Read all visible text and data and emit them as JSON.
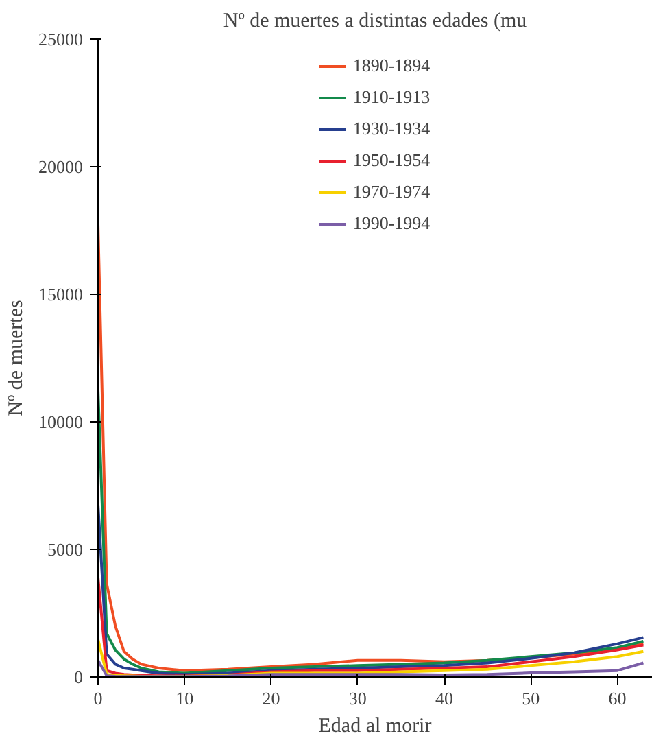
{
  "chart_data": {
    "type": "line",
    "title": "Nº de muertes a distintas edades (mu",
    "xlabel": "Edad al morir",
    "ylabel": "Nº de muertes",
    "x": [
      0,
      1,
      2,
      3,
      4,
      5,
      7,
      10,
      15,
      20,
      25,
      30,
      35,
      40,
      45,
      50,
      55,
      60,
      63
    ],
    "series": [
      {
        "name": "1890-1894",
        "color": "#f04e23",
        "values": [
          17750,
          3650,
          2000,
          1000,
          700,
          500,
          350,
          250,
          300,
          400,
          500,
          650,
          650,
          600,
          650,
          750,
          900,
          1100,
          1300
        ]
      },
      {
        "name": "1910-1913",
        "color": "#138a4b",
        "values": [
          11240,
          1700,
          1060,
          700,
          500,
          350,
          200,
          150,
          250,
          350,
          400,
          450,
          500,
          550,
          650,
          800,
          950,
          1150,
          1400
        ]
      },
      {
        "name": "1930-1934",
        "color": "#263f8f",
        "values": [
          6760,
          900,
          500,
          350,
          300,
          250,
          150,
          100,
          150,
          250,
          300,
          350,
          400,
          450,
          550,
          730,
          950,
          1300,
          1550
        ]
      },
      {
        "name": "1950-1954",
        "color": "#e8202f",
        "values": [
          3900,
          250,
          150,
          100,
          80,
          60,
          50,
          40,
          80,
          200,
          250,
          250,
          300,
          350,
          400,
          600,
          800,
          1060,
          1250
        ]
      },
      {
        "name": "1970-1974",
        "color": "#f7d000",
        "values": [
          1470,
          100,
          60,
          50,
          40,
          30,
          30,
          30,
          60,
          150,
          150,
          150,
          200,
          250,
          300,
          450,
          600,
          800,
          1000
        ]
      },
      {
        "name": "1990-1994",
        "color": "#7b5ea7",
        "values": [
          650,
          50,
          30,
          20,
          20,
          20,
          20,
          20,
          40,
          100,
          100,
          100,
          100,
          80,
          100,
          160,
          200,
          250,
          550
        ]
      }
    ],
    "xlim": [
      0,
      64
    ],
    "ylim": [
      0,
      25000
    ],
    "xticks": [
      0,
      10,
      20,
      30,
      40,
      50,
      60
    ],
    "yticks": [
      0,
      5000,
      10000,
      15000,
      20000,
      25000
    ],
    "grid": false,
    "legend": "top"
  }
}
